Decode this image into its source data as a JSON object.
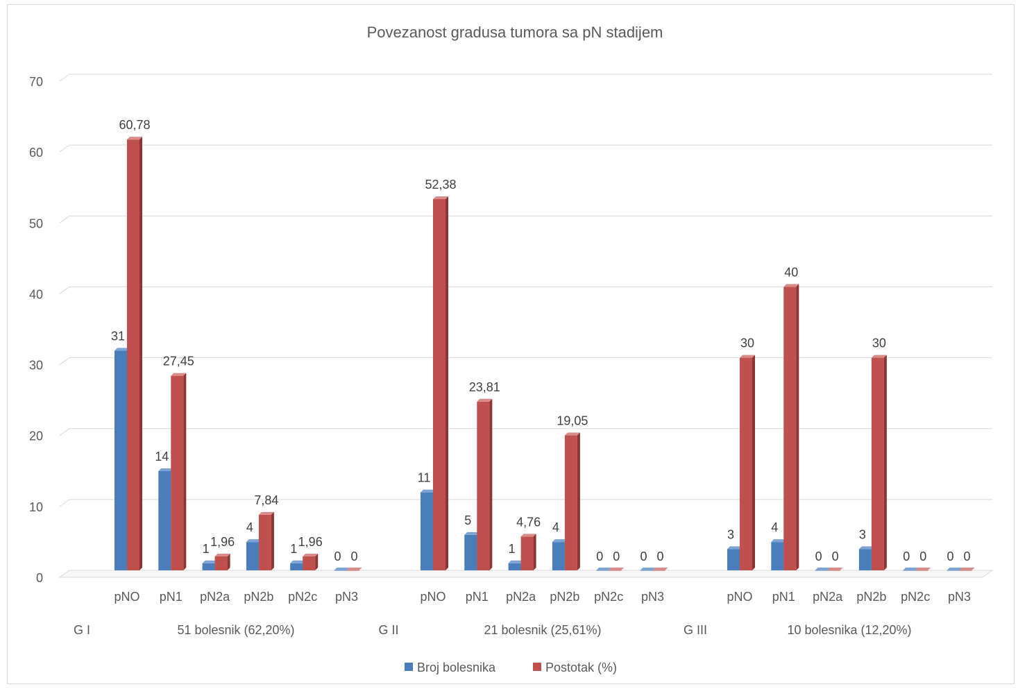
{
  "chart_data": {
    "type": "bar",
    "title": "Povezanost gradusa tumora sa pN stadijem",
    "ylim": [
      0,
      70
    ],
    "yticks": [
      0,
      10,
      20,
      30,
      40,
      50,
      60,
      70
    ],
    "grid": true,
    "legend_position": "bottom",
    "categories": [
      "pNO",
      "pN1",
      "pN2a",
      "pN2b",
      "pN2c",
      "pN3"
    ],
    "groups": [
      {
        "label": "G I",
        "sublabel": "51 bolesnik (62,20%)",
        "series": [
          {
            "name": "Broj bolesnika",
            "values": [
              31,
              14,
              1,
              4,
              1,
              0
            ],
            "labels": [
              "31",
              "14",
              "1",
              "4",
              "1",
              "0"
            ]
          },
          {
            "name": "Postotak (%)",
            "values": [
              60.78,
              27.45,
              1.96,
              7.84,
              1.96,
              0
            ],
            "labels": [
              "60,78",
              "27,45",
              "1,96",
              "7,84",
              "1,96",
              "0"
            ]
          }
        ]
      },
      {
        "label": "G II",
        "sublabel": "21 bolesnik (25,61%)",
        "series": [
          {
            "name": "Broj bolesnika",
            "values": [
              11,
              5,
              1,
              4,
              0,
              0
            ],
            "labels": [
              "11",
              "5",
              "1",
              "4",
              "0",
              "0"
            ]
          },
          {
            "name": "Postotak (%)",
            "values": [
              52.38,
              23.81,
              4.76,
              19.05,
              0,
              0
            ],
            "labels": [
              "52,38",
              "23,81",
              "4,76",
              "19,05",
              "0",
              "0"
            ]
          }
        ]
      },
      {
        "label": "G III",
        "sublabel": "10 bolesnika (12,20%)",
        "series": [
          {
            "name": "Broj bolesnika",
            "values": [
              3,
              4,
              0,
              3,
              0,
              0
            ],
            "labels": [
              "3",
              "4",
              "0",
              "3",
              "0",
              "0"
            ]
          },
          {
            "name": "Postotak (%)",
            "values": [
              30,
              40,
              0,
              30,
              0,
              0
            ],
            "labels": [
              "30",
              "40",
              "0",
              "30",
              "0",
              "0"
            ]
          }
        ]
      }
    ],
    "legend": [
      {
        "name": "Broj bolesnika",
        "color": "#4a7ebb"
      },
      {
        "name": "Postotak (%)",
        "color": "#c0504d"
      }
    ]
  }
}
